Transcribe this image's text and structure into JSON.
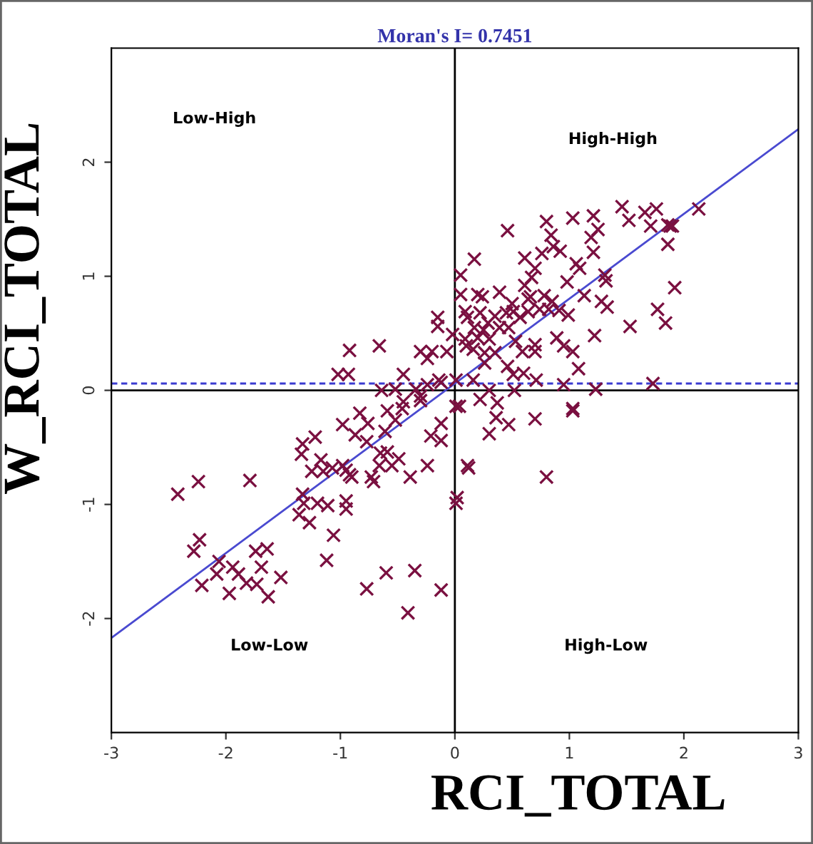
{
  "chart_data": {
    "type": "scatter",
    "title": "Moran's I= 0.7451",
    "xlabel": "RCI_TOTAL",
    "ylabel": "W_RCI_TOTAL",
    "annotations": [
      "Low-High",
      "High-High",
      "Low-Low",
      "High-Low"
    ],
    "xlim": [
      -3,
      3
    ],
    "ylim": [
      -3,
      3
    ],
    "xticks": [
      -3,
      -2,
      -1,
      0,
      1,
      2,
      3
    ],
    "yticks": [
      -2,
      -1,
      0,
      1,
      2
    ],
    "grid": false,
    "ref_lines": [
      {
        "axis": "x",
        "value": 0,
        "color": "#000000",
        "line_style": "solid"
      },
      {
        "axis": "y",
        "value": 0,
        "color": "#000000",
        "line_style": "solid"
      },
      {
        "axis": "y",
        "value": 0.06,
        "color": "#3a3ad0",
        "line_style": "dashed"
      }
    ],
    "series": [
      {
        "color": "#7a1040",
        "marker": "cross",
        "x": [
          -0.92,
          -0.66,
          -1.02,
          -0.93,
          -0.45,
          -0.64,
          -0.52,
          -0.45,
          -0.34,
          -0.3,
          -0.24,
          -0.12,
          -0.83,
          -0.98,
          -0.87,
          -0.76,
          -0.59,
          -0.46,
          -0.61,
          -0.65,
          -0.59,
          -0.66,
          -0.55,
          -0.49,
          -0.39,
          -0.24,
          -0.21,
          -0.12,
          -0.12,
          -1.33,
          -1.34,
          -1.22,
          -1.17,
          -1.25,
          -1.15,
          -1.07,
          -0.98,
          -0.95,
          -0.9,
          -0.73,
          -0.71,
          -1.33,
          -1.32,
          -1.36,
          -1.27,
          -1.2,
          -1.11,
          -0.95,
          -0.95,
          -1.06,
          -1.12,
          -0.6,
          -0.35,
          -0.77,
          -0.41,
          -0.12,
          0.01,
          0.02,
          -2.24,
          -2.42,
          -1.79,
          -2.23,
          -2.28,
          -2.06,
          -2.08,
          -2.21,
          -1.97,
          -1.94,
          -1.89,
          -1.82,
          -1.73,
          -1.74,
          -1.64,
          -1.69,
          -1.52,
          -1.63,
          0.01,
          0.11,
          1.46,
          1.66,
          1.76,
          2.13,
          1.71,
          1.88,
          1.86,
          1.92,
          1.77,
          1.84,
          1.53,
          1.22,
          1.31,
          1.32,
          1.13,
          1.28,
          1.33,
          1.21,
          1.03,
          0.8,
          1.25,
          0.84,
          1.19,
          0.86,
          0.76,
          0.92,
          1.21,
          0.46,
          0.17,
          0.61,
          1.06,
          1.09,
          0.7,
          0.67,
          0.98,
          0.05,
          0.05,
          0.2,
          0.24,
          0.39,
          0.61,
          0.66,
          0.78,
          0.85,
          0.91,
          0.99,
          0.82,
          0.74,
          0.64,
          0.5,
          0.51,
          0.64,
          0.57,
          0.45,
          0.35,
          0.29,
          0.39,
          0.47,
          0.25,
          0.17,
          0.09,
          0.11,
          0.22,
          0.2,
          0.1,
          0.09,
          0.16,
          0.3,
          0.35,
          0.26,
          0.53,
          0.7,
          0.59,
          0.7,
          0.89,
          0.95,
          1.03,
          1.08,
          0.51,
          0.71,
          0.95,
          1.23,
          1.73,
          1.03,
          -0.15,
          -0.15,
          -0.2,
          -0.07,
          -0.14,
          0.01,
          0.04,
          0.16,
          0.3,
          0.22,
          0.37,
          0.52,
          0.26,
          0.46,
          0.6,
          1.52,
          1.86,
          1.9,
          0.12,
          0.8,
          0.36,
          0.47,
          0.3,
          0.7,
          1.03,
          -0.92,
          -0.77,
          -0.52,
          -0.3,
          -0.02,
          -0.24,
          -0.3
        ],
        "values": [
          0.35,
          0.39,
          0.14,
          0.14,
          0.14,
          0.0,
          0.01,
          -0.1,
          0.01,
          -0.09,
          0.05,
          0.07,
          -0.2,
          -0.3,
          -0.39,
          -0.29,
          -0.18,
          -0.16,
          -0.36,
          -0.55,
          -0.54,
          -0.66,
          -0.66,
          -0.6,
          -0.76,
          -0.66,
          -0.4,
          -0.44,
          -0.29,
          -0.47,
          -0.56,
          -0.41,
          -0.61,
          -0.71,
          -0.71,
          -0.68,
          -0.66,
          -0.7,
          -0.76,
          -0.76,
          -0.8,
          -0.91,
          -0.99,
          -1.09,
          -1.16,
          -0.99,
          -1.01,
          -0.97,
          -1.04,
          -1.27,
          -1.49,
          -1.6,
          -1.58,
          -1.74,
          -1.95,
          -1.75,
          -0.99,
          -0.94,
          -0.8,
          -0.91,
          -0.79,
          -1.31,
          -1.41,
          -1.5,
          -1.61,
          -1.71,
          -1.78,
          -1.55,
          -1.61,
          -1.69,
          -1.7,
          -1.41,
          -1.39,
          -1.55,
          -1.64,
          -1.81,
          -0.14,
          -0.66,
          1.61,
          1.56,
          1.59,
          1.59,
          1.44,
          1.44,
          1.28,
          0.9,
          0.71,
          0.59,
          0.56,
          0.48,
          1.01,
          0.96,
          0.83,
          0.78,
          0.73,
          1.53,
          1.51,
          1.48,
          1.41,
          1.36,
          1.34,
          1.26,
          1.2,
          1.22,
          1.21,
          1.4,
          1.15,
          1.16,
          1.11,
          1.07,
          1.07,
          0.99,
          0.95,
          1.01,
          0.84,
          0.84,
          0.82,
          0.86,
          0.92,
          0.82,
          0.83,
          0.78,
          0.7,
          0.66,
          0.71,
          0.71,
          0.8,
          0.76,
          0.69,
          0.69,
          0.64,
          0.68,
          0.65,
          0.59,
          0.55,
          0.55,
          0.53,
          0.55,
          0.69,
          0.64,
          0.68,
          0.46,
          0.39,
          0.45,
          0.36,
          0.45,
          0.33,
          0.33,
          0.43,
          0.4,
          0.34,
          0.34,
          0.46,
          0.39,
          0.34,
          0.19,
          0.14,
          0.09,
          0.05,
          0.01,
          0.06,
          -0.16,
          0.64,
          0.56,
          0.34,
          0.34,
          0.09,
          0.09,
          -0.14,
          0.09,
          0.0,
          -0.08,
          -0.11,
          0.0,
          0.24,
          0.21,
          0.15,
          1.49,
          1.45,
          1.44,
          -0.68,
          -0.76,
          -0.24,
          -0.3,
          -0.38,
          -0.25,
          -0.18,
          -0.74,
          -0.45,
          -0.26,
          -0.05,
          0.49,
          0.28,
          0.34
        ]
      },
      {
        "type": "line",
        "color": "#4a4ad0",
        "x": [
          -3,
          3
        ],
        "values": [
          -2.17,
          2.29
        ]
      }
    ]
  }
}
